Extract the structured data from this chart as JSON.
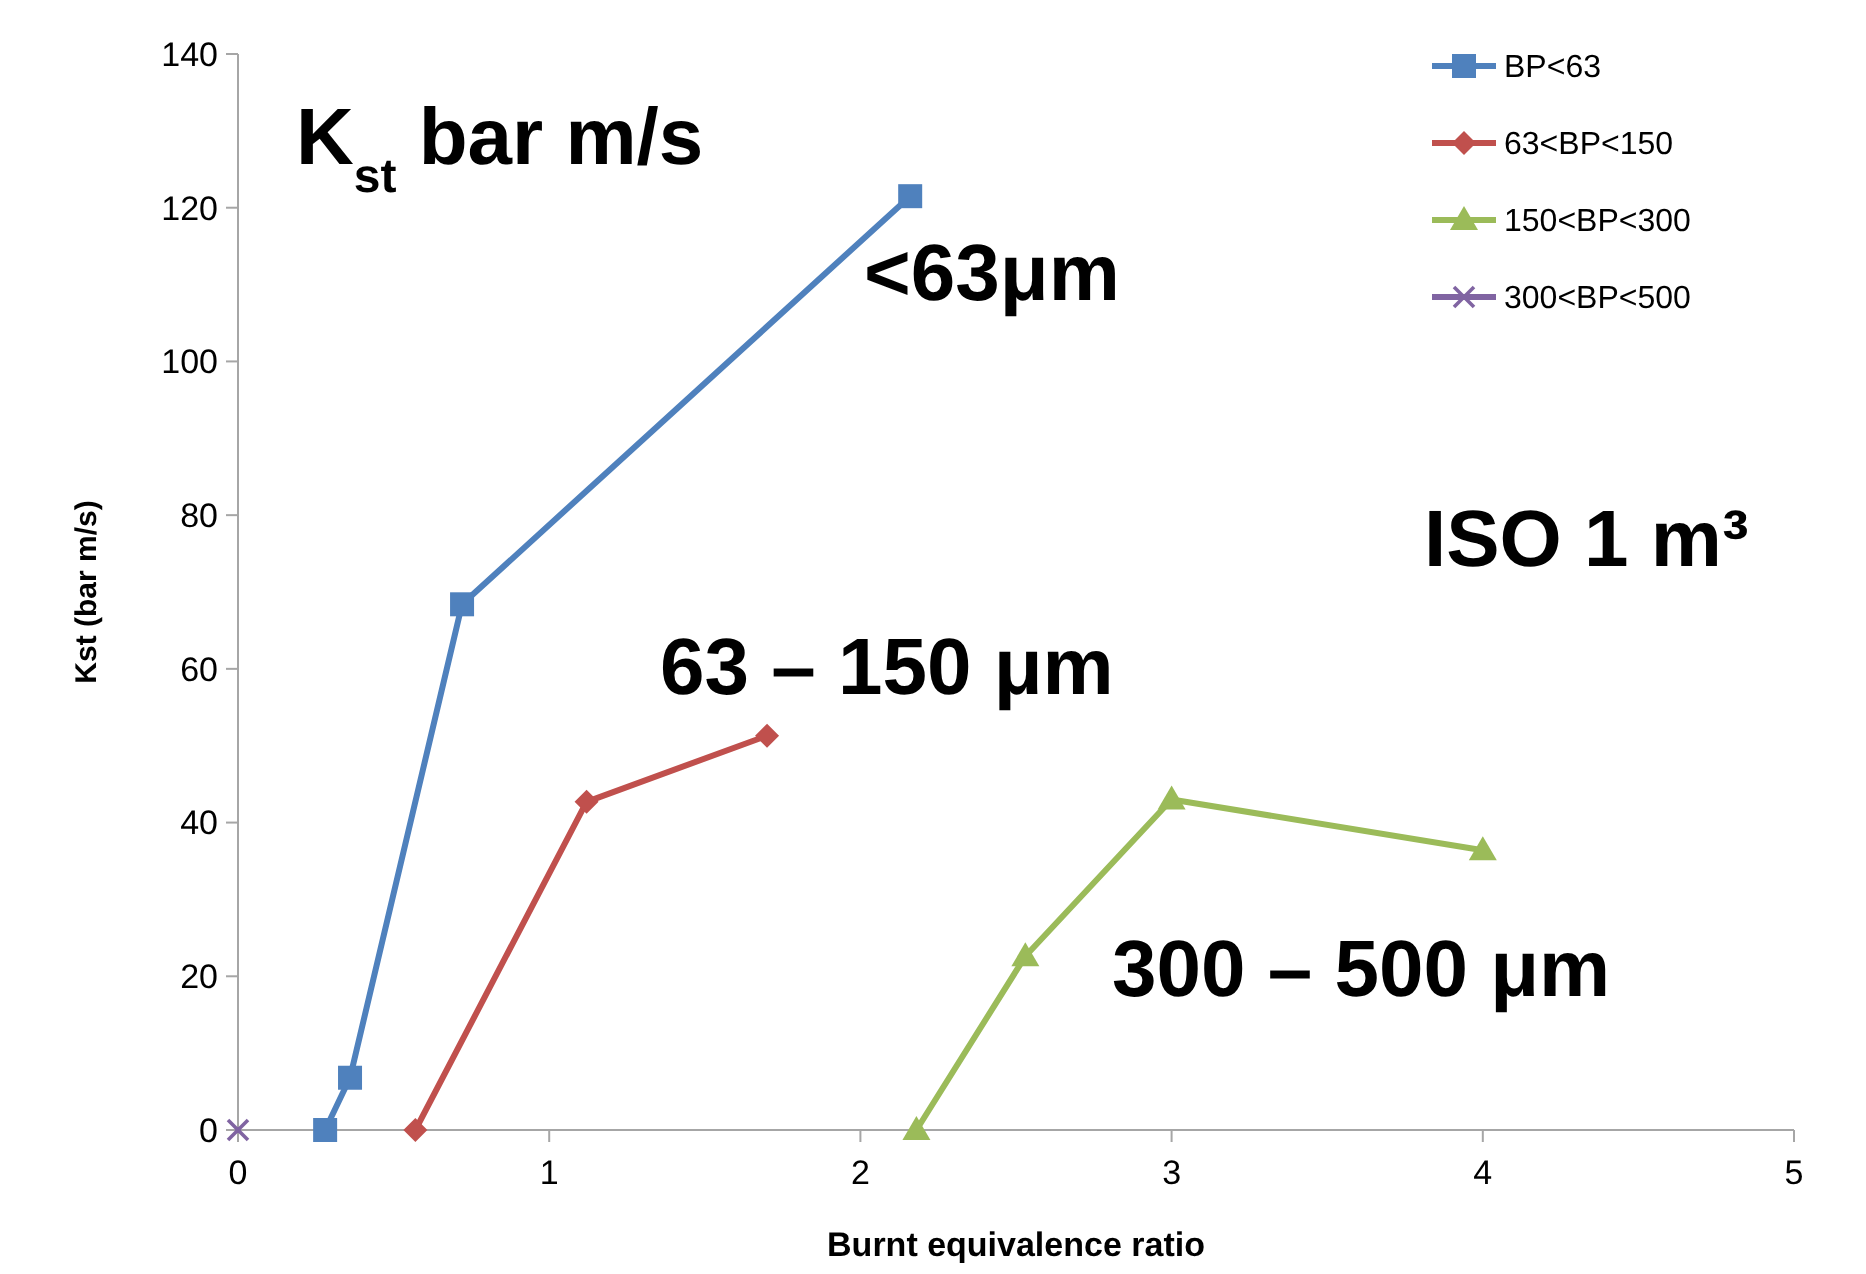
{
  "chart_data": {
    "type": "line",
    "xlabel": "Burnt equivalence ratio",
    "ylabel": "Kst (bar m/s)",
    "xlim": [
      0,
      5
    ],
    "ylim": [
      0,
      140
    ],
    "xticks": [
      0,
      1,
      2,
      3,
      4,
      5
    ],
    "yticks": [
      0,
      20,
      40,
      60,
      80,
      100,
      120,
      140
    ],
    "grid": false,
    "legend": "top right",
    "line_style": "solid",
    "series": [
      {
        "name": "BP<63",
        "color": "#4f81bd",
        "marker": "square",
        "x": [
          0.28,
          0.36,
          0.72,
          2.16
        ],
        "values": [
          0,
          6.8,
          68.4,
          121.5
        ]
      },
      {
        "name": "63<BP<150",
        "color": "#c0504d",
        "marker": "diamond",
        "x": [
          0.57,
          1.12,
          1.7
        ],
        "values": [
          0,
          42.7,
          51.3
        ]
      },
      {
        "name": "150<BP<300",
        "color": "#9bbb59",
        "marker": "triangle",
        "x": [
          2.18,
          2.53,
          3.0,
          4.0
        ],
        "values": [
          0,
          22.6,
          43,
          36.4
        ]
      },
      {
        "name": "300<BP<500",
        "color": "#8064a2",
        "marker": "cross",
        "x": [
          0
        ],
        "values": [
          0
        ]
      }
    ],
    "annotations": [
      "K$_{st}$ bar m/s",
      "ISO 1 m³",
      "<63μm",
      "63 – 150 μm",
      "300 – 500 μm"
    ]
  }
}
